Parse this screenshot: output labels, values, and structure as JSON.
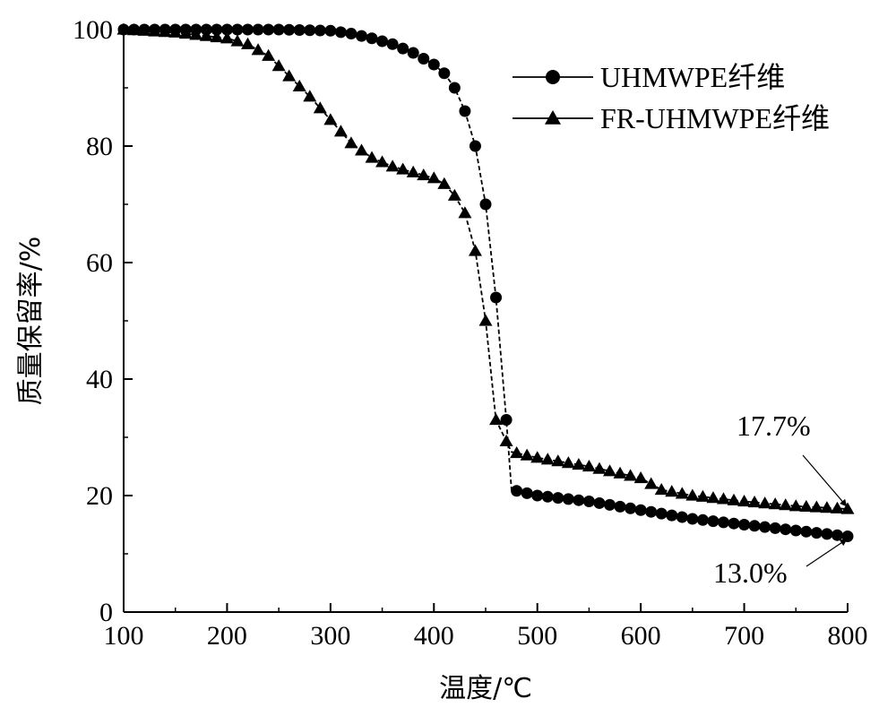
{
  "chart_data": {
    "type": "line",
    "xlabel": "温度/℃",
    "ylabel": "质量保留率/%",
    "xlim": [
      100,
      800
    ],
    "ylim": [
      0,
      100
    ],
    "x_ticks": [
      100,
      200,
      300,
      400,
      500,
      600,
      700,
      800
    ],
    "y_ticks": [
      0,
      20,
      40,
      60,
      80,
      100
    ],
    "grid": false,
    "legend_position": "top-right",
    "series": [
      {
        "name": "UHMWPE纤维",
        "marker": "circle",
        "line_style": "dashed",
        "points": [
          [
            100,
            100
          ],
          [
            130,
            100
          ],
          [
            160,
            100
          ],
          [
            200,
            100
          ],
          [
            250,
            100
          ],
          [
            300,
            99.8
          ],
          [
            320,
            99.3
          ],
          [
            340,
            98.5
          ],
          [
            360,
            97.5
          ],
          [
            380,
            96.0
          ],
          [
            400,
            94.0
          ],
          [
            410,
            92.5
          ],
          [
            420,
            90.0
          ],
          [
            430,
            86.0
          ],
          [
            440,
            80.0
          ],
          [
            450,
            70.0
          ],
          [
            460,
            54.0
          ],
          [
            470,
            33.0
          ],
          [
            475,
            21.0
          ],
          [
            500,
            20.0
          ],
          [
            550,
            19.0
          ],
          [
            600,
            17.5
          ],
          [
            650,
            16.0
          ],
          [
            700,
            15.0
          ],
          [
            750,
            14.0
          ],
          [
            800,
            13.0
          ]
        ]
      },
      {
        "name": "FR-UHMWPE纤维",
        "marker": "triangle",
        "line_style": "dashed",
        "points": [
          [
            100,
            100
          ],
          [
            150,
            99.5
          ],
          [
            200,
            98.5
          ],
          [
            220,
            97.5
          ],
          [
            240,
            95.5
          ],
          [
            260,
            92.0
          ],
          [
            280,
            88.5
          ],
          [
            300,
            84.5
          ],
          [
            320,
            80.5
          ],
          [
            340,
            78.0
          ],
          [
            360,
            76.5
          ],
          [
            380,
            75.5
          ],
          [
            400,
            74.5
          ],
          [
            410,
            73.5
          ],
          [
            420,
            71.5
          ],
          [
            430,
            68.5
          ],
          [
            440,
            62.0
          ],
          [
            450,
            50.0
          ],
          [
            460,
            33.0
          ],
          [
            475,
            27.5
          ],
          [
            500,
            26.5
          ],
          [
            550,
            25.0
          ],
          [
            600,
            23.0
          ],
          [
            620,
            21.0
          ],
          [
            650,
            20.0
          ],
          [
            700,
            19.0
          ],
          [
            750,
            18.2
          ],
          [
            800,
            17.7
          ]
        ]
      }
    ],
    "annotations": [
      {
        "text": "17.7%",
        "points_to": [
          800,
          17.7
        ]
      },
      {
        "text": "13.0%",
        "points_to": [
          800,
          13.0
        ]
      }
    ]
  }
}
